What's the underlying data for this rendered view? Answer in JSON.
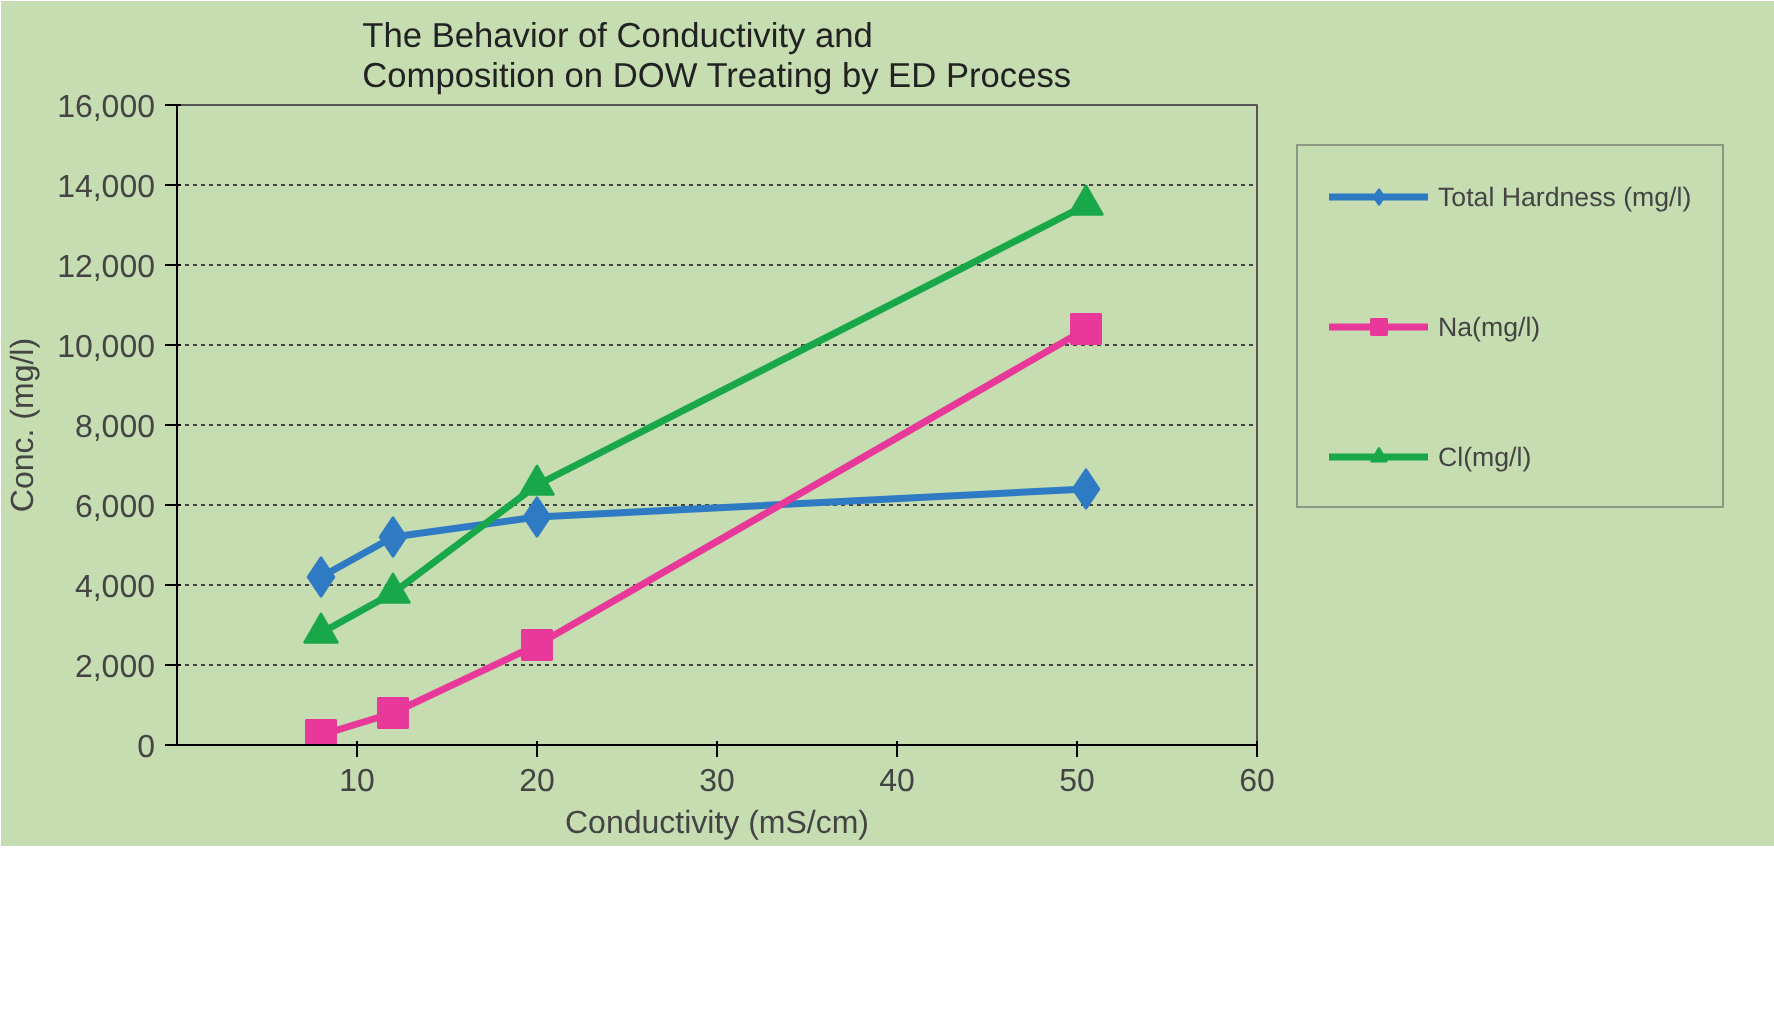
{
  "chart_data": {
    "type": "line",
    "title": "The Behavior of Conductivity and Composition on DOW Treating by ED Process",
    "xlabel": "Conductivity (mS/cm)",
    "ylabel": "Conc. (mg/l)",
    "x": [
      8,
      12,
      20,
      50.5
    ],
    "series": [
      {
        "name": "Total Hardness (mg/l)",
        "color": "#2e7bc4",
        "marker": "diamond",
        "values": [
          4200,
          5200,
          5700,
          6400
        ]
      },
      {
        "name": "Na(mg/l)",
        "color": "#e8399a",
        "marker": "square",
        "values": [
          250,
          800,
          2500,
          10400
        ]
      },
      {
        "name": "Cl(mg/l)",
        "color": "#18a84a",
        "marker": "triangle",
        "values": [
          2800,
          3800,
          6500,
          13500
        ]
      }
    ],
    "xlim": [
      0,
      60
    ],
    "xticks": [
      10,
      20,
      30,
      40,
      50,
      60
    ],
    "ylim": [
      0,
      16000
    ],
    "yticks": [
      0,
      {
        "value": 2000,
        "label": "2,000"
      },
      {
        "value": 4000,
        "label": "4,000"
      },
      {
        "value": 6000,
        "label": "6,000"
      },
      {
        "value": 8000,
        "label": "8,000"
      },
      {
        "value": 10000,
        "label": "10,000"
      },
      {
        "value": 12000,
        "label": "12,000"
      },
      {
        "value": 14000,
        "label": "14,000"
      },
      {
        "value": 16000,
        "label": "16,000"
      }
    ],
    "grid": "y",
    "legend": "right"
  }
}
